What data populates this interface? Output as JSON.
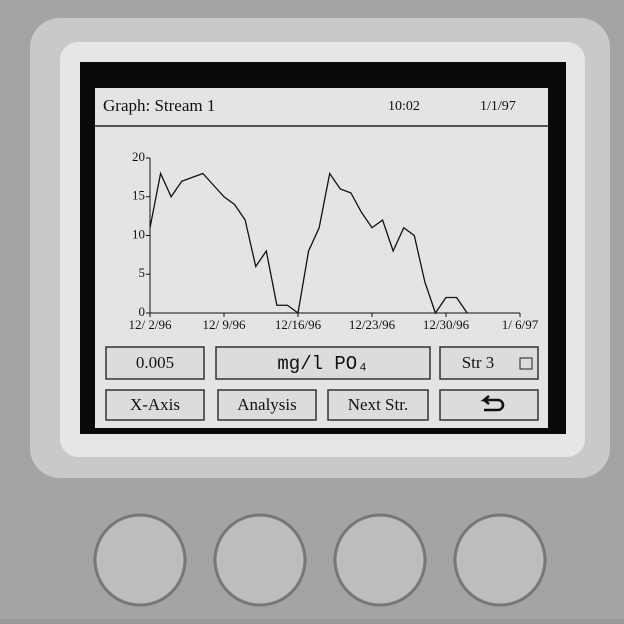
{
  "header": {
    "title": "Graph: Stream 1",
    "time": "10:02",
    "date": "1/1/97"
  },
  "buttons": {
    "value": "0.005",
    "unit": "mg/l PO₄",
    "stream": "Str 3",
    "x_axis": "X-Axis",
    "analysis": "Analysis",
    "next": "Next Str."
  },
  "chart_data": {
    "type": "line",
    "grid": false,
    "x": [
      "12/2/96",
      "12/3/96",
      "12/4/96",
      "12/5/96",
      "12/6/96",
      "12/7/96",
      "12/8/96",
      "12/9/96",
      "12/10/96",
      "12/11/96",
      "12/12/96",
      "12/13/96",
      "12/14/96",
      "12/15/96",
      "12/16/96",
      "12/17/96",
      "12/18/96",
      "12/19/96",
      "12/20/96",
      "12/21/96",
      "12/22/96",
      "12/23/96",
      "12/24/96",
      "12/25/96",
      "12/26/96",
      "12/27/96",
      "12/28/96",
      "12/29/96",
      "12/30/96",
      "12/31/96",
      "1/1/97"
    ],
    "series": [
      {
        "color": "#111111",
        "values": [
          11,
          18,
          15,
          17,
          17.5,
          18,
          16.5,
          15,
          14,
          12,
          6,
          8,
          1,
          1,
          0,
          8,
          11,
          18,
          16,
          15.5,
          13,
          11,
          12,
          8,
          11,
          10,
          4,
          0,
          2,
          2,
          0
        ]
      }
    ],
    "xlim": [
      "12/2/96",
      "1/6/97"
    ],
    "xticks": [
      {
        "value": "12/2/96",
        "label": "12/ 2/96"
      },
      {
        "value": "12/9/96",
        "label": "12/ 9/96"
      },
      {
        "value": "12/16/96",
        "label": "12/16/96"
      },
      {
        "value": "12/23/96",
        "label": "12/23/96"
      },
      {
        "value": "12/30/96",
        "label": "12/30/96"
      },
      {
        "value": "1/6/97",
        "label": "1/ 6/97"
      }
    ],
    "ylim": [
      0,
      20
    ],
    "yticks": [
      0,
      5,
      10,
      15,
      20
    ]
  }
}
